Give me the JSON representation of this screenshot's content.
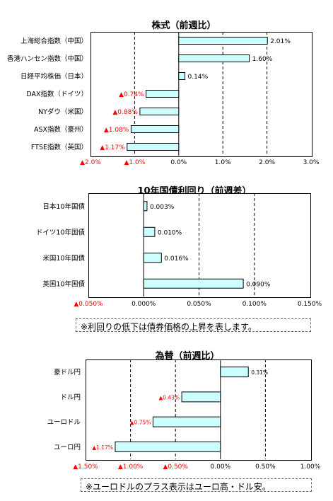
{
  "chart_data": [
    {
      "type": "bar",
      "orientation": "horizontal",
      "title": "株式（前週比）",
      "categories": [
        "上海総合指数（中国）",
        "香港ハンセン指数（中国）",
        "日経平均株価（日本）",
        "DAX指数（ドイツ）",
        "NYダウ（米国）",
        "ASX指数（豪州）",
        "FTSE指数（英国）"
      ],
      "values": [
        2.01,
        1.6,
        0.14,
        -0.74,
        -0.88,
        -1.08,
        -1.17
      ],
      "labels": [
        "2.01%",
        "1.60%",
        "0.14%",
        "▲0.74%",
        "▲0.88%",
        "▲1.08%",
        "▲1.17%"
      ],
      "xlim": [
        -2.0,
        3.0
      ],
      "ticks": [
        -2.0,
        -1.0,
        0.0,
        1.0,
        2.0,
        3.0
      ],
      "tick_labels": [
        "▲2.0%",
        "▲1.0%",
        "0.0%",
        "1.0%",
        "2.0%",
        "3.0%"
      ],
      "grid": true
    },
    {
      "type": "bar",
      "orientation": "horizontal",
      "title": "10年国債利回り（前週差）",
      "categories": [
        "日本10年国債",
        "ドイツ10年国債",
        "米国10年国債",
        "英国10年国債"
      ],
      "values": [
        0.003,
        0.01,
        0.016,
        0.09
      ],
      "labels": [
        "0.003%",
        "0.010%",
        "0.016%",
        "0.090%"
      ],
      "xlim": [
        -0.05,
        0.15
      ],
      "ticks": [
        -0.05,
        0.0,
        0.05,
        0.1,
        0.15
      ],
      "tick_labels": [
        "▲0.050%",
        "0.000%",
        "0.050%",
        "0.100%",
        "0.150%"
      ],
      "grid": true
    },
    {
      "type": "bar",
      "orientation": "horizontal",
      "title": "為替（前週比）",
      "categories": [
        "豪ドル円",
        "ドル円",
        "ユーロドル",
        "ユーロ円"
      ],
      "values": [
        0.31,
        -0.43,
        -0.75,
        -1.17
      ],
      "labels": [
        "0.31%",
        "▲0.43%",
        "▲0.75%",
        "▲1.17%"
      ],
      "xlim": [
        -1.5,
        1.0
      ],
      "ticks": [
        -1.5,
        -1.0,
        -0.5,
        0.0,
        0.5,
        1.0
      ],
      "tick_labels": [
        "▲1.50%",
        "▲1.00%",
        "▲0.50%",
        "0.00%",
        "0.50%",
        "1.00%"
      ],
      "grid": true
    }
  ],
  "notes": {
    "bond_note": "※利回りの低下は債券価格の上昇を表します。",
    "fx_note": "※ユーロドルのプラス表示はユーロ高・ドル安。"
  },
  "colors": {
    "bar_fill": "#ccffff",
    "bar_stroke": "#000000",
    "negative_label": "#ff0000",
    "positive_label": "#000000",
    "grid": "#000000"
  }
}
